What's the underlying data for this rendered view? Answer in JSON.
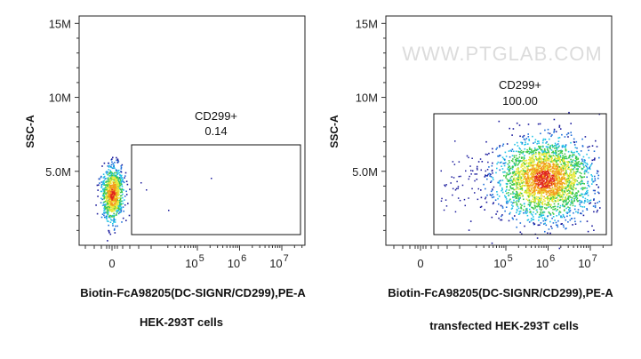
{
  "watermark": "WWW.PTGLAB.COM",
  "chart_data": [
    {
      "type": "scatter",
      "subtype": "flow-cytometry-density-dot-plot",
      "xlabel": "Biotin-FcA98205(DC-SIGNR/CD299),PE-A",
      "ylabel": "SSC-A",
      "x_scale": "biexponential",
      "y_ticks": [
        "5.0M",
        "10M",
        "15M"
      ],
      "y_tick_values": [
        5000000,
        10000000,
        15000000
      ],
      "ylim": [
        0,
        15500000
      ],
      "x_ticks": [
        {
          "base": "0",
          "exp": ""
        },
        {
          "base": "10",
          "exp": "5"
        },
        {
          "base": "10",
          "exp": "6"
        },
        {
          "base": "10",
          "exp": "7"
        }
      ],
      "x_tick_values": [
        0,
        100000,
        1000000,
        10000000
      ],
      "gate": {
        "label": "CD299+",
        "value": "0.14"
      },
      "caption": "HEK-293T cells",
      "population": {
        "center_x": 0,
        "center_y": 3500000,
        "spread": "narrow",
        "percent_positive": 0.14
      }
    },
    {
      "type": "scatter",
      "subtype": "flow-cytometry-density-dot-plot",
      "xlabel": "Biotin-FcA98205(DC-SIGNR/CD299),PE-A",
      "ylabel": "SSC-A",
      "x_scale": "biexponential",
      "y_ticks": [
        "5.0M",
        "10M",
        "15M"
      ],
      "y_tick_values": [
        5000000,
        10000000,
        15000000
      ],
      "ylim": [
        0,
        15500000
      ],
      "x_ticks": [
        {
          "base": "0",
          "exp": ""
        },
        {
          "base": "10",
          "exp": "5"
        },
        {
          "base": "10",
          "exp": "6"
        },
        {
          "base": "10",
          "exp": "7"
        }
      ],
      "x_tick_values": [
        0,
        100000,
        1000000,
        10000000
      ],
      "gate": {
        "label": "CD299+",
        "value": "100.00"
      },
      "caption": "transfected HEK-293T cells",
      "population": {
        "center_x": 800000,
        "center_y": 4500000,
        "spread": "wide",
        "percent_positive": 100.0
      }
    }
  ],
  "density_colors": [
    "#1a1a9c",
    "#1e6fd9",
    "#22c3e6",
    "#3ec94a",
    "#e8e83a",
    "#f39a1c",
    "#e0261e"
  ]
}
